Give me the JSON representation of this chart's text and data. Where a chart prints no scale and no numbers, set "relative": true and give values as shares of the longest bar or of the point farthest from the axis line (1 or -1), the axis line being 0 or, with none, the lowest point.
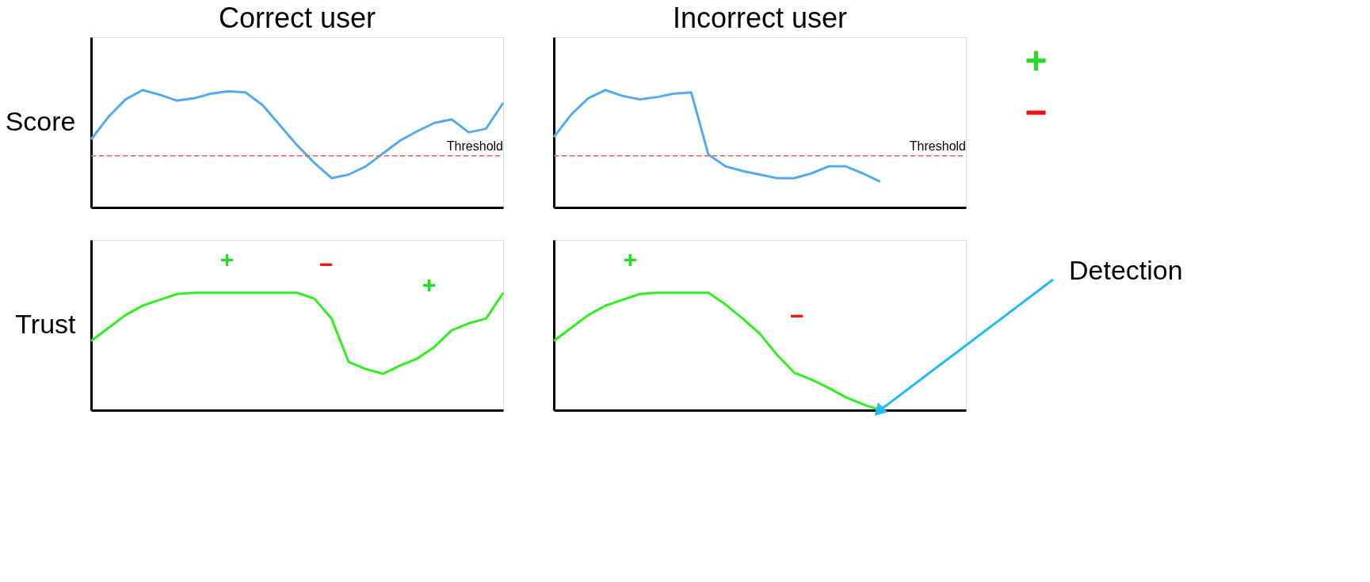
{
  "chart_data": [
    {
      "type": "line",
      "title": "Correct user",
      "ylabel": "Score",
      "relative": true,
      "tick_labels": false,
      "grid": false,
      "marker": "none",
      "line_style": "solid",
      "categories": [
        null,
        null,
        null,
        null,
        null,
        null,
        null,
        null,
        null,
        null,
        null,
        null,
        null,
        null,
        null,
        null,
        null,
        null,
        null,
        null,
        null,
        null,
        null,
        null,
        null
      ],
      "series": [
        {
          "color": "#55aaee",
          "values": [
            0.58,
            0.77,
            0.92,
            1,
            0.96,
            0.91,
            0.93,
            0.97,
            0.99,
            0.98,
            0.87,
            0.7,
            0.53,
            0.38,
            0.25,
            0.28,
            0.35,
            0.46,
            0.57,
            0.65,
            0.72,
            0.75,
            0.64,
            0.67,
            0.89
          ]
        }
      ],
      "ref_lines": [
        {
          "axis": "y",
          "value": 0.44,
          "label": "Threshold",
          "color": "#ff5555",
          "line_style": "dashed"
        }
      ]
    },
    {
      "type": "line",
      "title": "Incorrect user",
      "relative": true,
      "tick_labels": false,
      "grid": false,
      "marker": "none",
      "line_style": "solid",
      "categories": [
        null,
        null,
        null,
        null,
        null,
        null,
        null,
        null,
        null,
        null,
        null,
        null,
        null,
        null,
        null,
        null,
        null,
        null,
        null,
        null,
        null,
        null,
        null,
        null,
        null
      ],
      "series": [
        {
          "color": "#55aaee",
          "values": [
            0.6,
            0.79,
            0.93,
            1,
            0.95,
            0.92,
            0.94,
            0.97,
            0.98,
            0.45,
            0.35,
            0.31,
            0.28,
            0.25,
            0.25,
            0.29,
            0.35,
            0.35,
            0.29,
            0.22,
            null,
            null,
            null,
            null,
            null
          ]
        }
      ],
      "ref_lines": [
        {
          "axis": "y",
          "value": 0.44,
          "label": "Threshold",
          "color": "#ff5555",
          "line_style": "dashed"
        }
      ],
      "annotations": [
        "+",
        "−"
      ]
    },
    {
      "type": "line",
      "ylabel": "Trust",
      "relative": true,
      "tick_labels": false,
      "grid": false,
      "marker": "none",
      "line_style": "solid",
      "categories": [
        null,
        null,
        null,
        null,
        null,
        null,
        null,
        null,
        null,
        null,
        null,
        null,
        null,
        null,
        null,
        null,
        null,
        null,
        null,
        null,
        null,
        null,
        null,
        null,
        null
      ],
      "series": [
        {
          "color": "#33ee22",
          "values": [
            0.59,
            0.7,
            0.81,
            0.89,
            0.94,
            0.99,
            1,
            1,
            1,
            1,
            1,
            1,
            1,
            0.95,
            0.78,
            0.41,
            0.35,
            0.31,
            0.38,
            0.44,
            0.54,
            0.68,
            0.74,
            0.78,
            1
          ]
        }
      ],
      "annotations": [
        "+",
        "−",
        "+"
      ]
    },
    {
      "type": "line",
      "relative": true,
      "tick_labels": false,
      "grid": false,
      "marker": "none",
      "line_style": "solid",
      "categories": [
        null,
        null,
        null,
        null,
        null,
        null,
        null,
        null,
        null,
        null,
        null,
        null,
        null,
        null,
        null,
        null,
        null,
        null,
        null,
        null,
        null,
        null,
        null,
        null,
        null
      ],
      "series": [
        {
          "color": "#33ee22",
          "values": [
            0.59,
            0.7,
            0.81,
            0.89,
            0.94,
            0.99,
            1,
            1,
            1,
            1,
            0.9,
            0.78,
            0.65,
            0.47,
            0.32,
            0.26,
            0.19,
            0.11,
            0.05,
            0,
            null,
            null,
            null,
            null,
            null
          ]
        }
      ],
      "annotations": [
        "+",
        "−",
        "Detection"
      ]
    }
  ]
}
